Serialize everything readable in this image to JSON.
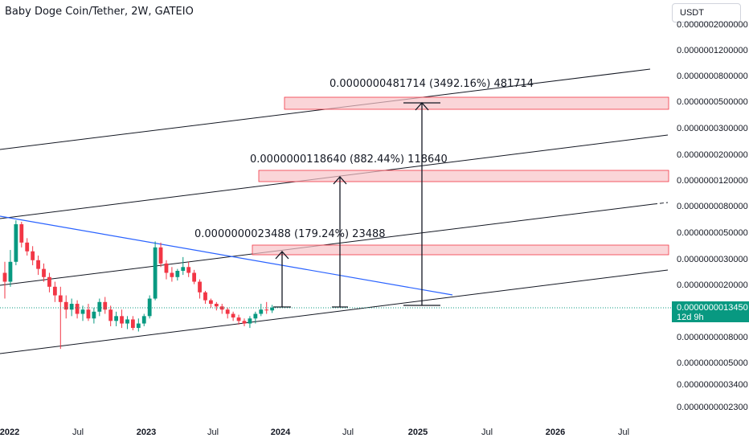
{
  "header": {
    "title": "Baby Doge Coin/Tether, 2W, GATEIO",
    "currency": "USDT"
  },
  "price_tag": {
    "price": "0.0000000013450",
    "countdown": "12d 9h",
    "color": "#089981"
  },
  "colors": {
    "up": "#089981",
    "down": "#f23645",
    "trendline": "#2962ff",
    "channel": "#131722",
    "zone_fill": "#f8c3c7",
    "zone_stroke": "#f23645"
  },
  "chart_data": {
    "type": "candlestick",
    "title": "Baby Doge Coin/Tether, 2W, GATEIO",
    "y_scale": "log",
    "y_ticks": [
      "0.0000002000000",
      "0.0000001200000",
      "0.0000000800000",
      "0.0000000500000",
      "0.0000000300000",
      "0.0000000200000",
      "0.0000000120000",
      "0.0000000080000",
      "0.0000000050000",
      "0.0000000030000",
      "0.0000000020000",
      "0.0000000008000",
      "0.0000000005000",
      "0.0000000003400",
      "0.0000000002300"
    ],
    "x_ticks": [
      "2022",
      "Jul",
      "2023",
      "Jul",
      "2024",
      "Jul",
      "2025",
      "Jul",
      "2026",
      "Jul"
    ],
    "annotations": [
      {
        "text": "0.0000000023488 (179.24%) 23488",
        "target": 3.75e-09
      },
      {
        "text": "0.0000000118640 (882.44%) 118640",
        "target": 1.2e-08
      },
      {
        "text": "0.0000000481714 (3492.16%) 481714",
        "target": 5e-08
      }
    ],
    "candles": [
      {
        "o": 2.6,
        "h": 3.2,
        "l": 1.6,
        "c": 2.2
      },
      {
        "o": 2.2,
        "h": 4.0,
        "l": 2.0,
        "c": 3.2
      },
      {
        "o": 3.2,
        "h": 7.0,
        "l": 3.0,
        "c": 6.5
      },
      {
        "o": 6.5,
        "h": 6.8,
        "l": 4.2,
        "c": 4.6
      },
      {
        "o": 4.6,
        "h": 5.0,
        "l": 3.6,
        "c": 3.9
      },
      {
        "o": 3.9,
        "h": 4.3,
        "l": 3.0,
        "c": 3.3
      },
      {
        "o": 3.3,
        "h": 3.6,
        "l": 2.5,
        "c": 2.8
      },
      {
        "o": 2.8,
        "h": 3.1,
        "l": 2.2,
        "c": 2.4
      },
      {
        "o": 2.4,
        "h": 2.6,
        "l": 1.8,
        "c": 2.0
      },
      {
        "o": 2.0,
        "h": 2.2,
        "l": 1.5,
        "c": 1.7
      },
      {
        "o": 1.7,
        "h": 2.0,
        "l": 0.62,
        "c": 1.5
      },
      {
        "o": 1.5,
        "h": 1.7,
        "l": 1.1,
        "c": 1.3
      },
      {
        "o": 1.3,
        "h": 1.6,
        "l": 1.15,
        "c": 1.45
      },
      {
        "o": 1.45,
        "h": 1.55,
        "l": 1.1,
        "c": 1.2
      },
      {
        "o": 1.2,
        "h": 1.4,
        "l": 1.05,
        "c": 1.3
      },
      {
        "o": 1.3,
        "h": 1.45,
        "l": 1.05,
        "c": 1.1
      },
      {
        "o": 1.1,
        "h": 1.35,
        "l": 1.0,
        "c": 1.25
      },
      {
        "o": 1.25,
        "h": 1.6,
        "l": 1.15,
        "c": 1.5
      },
      {
        "o": 1.5,
        "h": 1.65,
        "l": 1.2,
        "c": 1.3
      },
      {
        "o": 1.3,
        "h": 1.4,
        "l": 0.95,
        "c": 1.05
      },
      {
        "o": 1.05,
        "h": 1.25,
        "l": 0.95,
        "c": 1.15
      },
      {
        "o": 1.15,
        "h": 1.3,
        "l": 0.92,
        "c": 1.0
      },
      {
        "o": 1.0,
        "h": 1.15,
        "l": 0.9,
        "c": 1.08
      },
      {
        "o": 1.08,
        "h": 1.15,
        "l": 0.88,
        "c": 0.92
      },
      {
        "o": 0.92,
        "h": 1.1,
        "l": 0.86,
        "c": 1.0
      },
      {
        "o": 1.0,
        "h": 1.2,
        "l": 0.95,
        "c": 1.15
      },
      {
        "o": 1.15,
        "h": 1.7,
        "l": 1.1,
        "c": 1.6
      },
      {
        "o": 1.6,
        "h": 4.7,
        "l": 1.55,
        "c": 4.2
      },
      {
        "o": 4.2,
        "h": 4.6,
        "l": 2.9,
        "c": 3.1
      },
      {
        "o": 3.1,
        "h": 3.3,
        "l": 2.3,
        "c": 2.6
      },
      {
        "o": 2.6,
        "h": 2.9,
        "l": 2.2,
        "c": 2.4
      },
      {
        "o": 2.4,
        "h": 2.8,
        "l": 2.25,
        "c": 2.7
      },
      {
        "o": 2.7,
        "h": 3.5,
        "l": 2.5,
        "c": 2.9
      },
      {
        "o": 2.9,
        "h": 3.2,
        "l": 2.4,
        "c": 2.6
      },
      {
        "o": 2.6,
        "h": 2.75,
        "l": 2.1,
        "c": 2.2
      },
      {
        "o": 2.2,
        "h": 2.3,
        "l": 1.6,
        "c": 1.8
      },
      {
        "o": 1.8,
        "h": 1.85,
        "l": 1.45,
        "c": 1.55
      },
      {
        "o": 1.55,
        "h": 1.6,
        "l": 1.35,
        "c": 1.45
      },
      {
        "o": 1.45,
        "h": 1.5,
        "l": 1.28,
        "c": 1.38
      },
      {
        "o": 1.38,
        "h": 1.45,
        "l": 1.2,
        "c": 1.3
      },
      {
        "o": 1.3,
        "h": 1.35,
        "l": 1.1,
        "c": 1.2
      },
      {
        "o": 1.2,
        "h": 1.25,
        "l": 1.05,
        "c": 1.12
      },
      {
        "o": 1.12,
        "h": 1.18,
        "l": 0.98,
        "c": 1.05
      },
      {
        "o": 1.05,
        "h": 1.1,
        "l": 0.95,
        "c": 1.0
      },
      {
        "o": 1.0,
        "h": 1.15,
        "l": 0.92,
        "c": 1.1
      },
      {
        "o": 1.1,
        "h": 1.25,
        "l": 1.0,
        "c": 1.2
      },
      {
        "o": 1.2,
        "h": 1.45,
        "l": 1.15,
        "c": 1.3
      },
      {
        "o": 1.3,
        "h": 1.5,
        "l": 1.2,
        "c": 1.28
      },
      {
        "o": 1.28,
        "h": 1.42,
        "l": 1.22,
        "c": 1.35
      }
    ]
  }
}
